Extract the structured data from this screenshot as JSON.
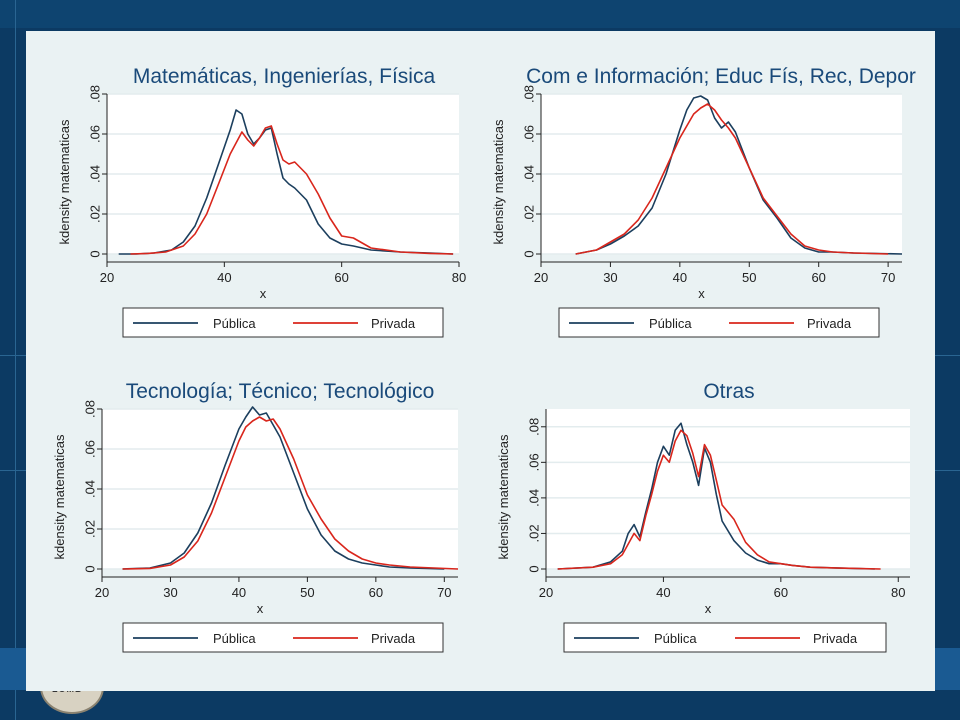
{
  "chart_data": [
    {
      "type": "line",
      "title": "Matemáticas, Ingenierías, Física",
      "xlabel": "x",
      "ylabel": "kdensity matematicas",
      "xlim": [
        20,
        80
      ],
      "ylim": [
        0,
        0.08
      ],
      "xticks": [
        "20",
        "40",
        "60",
        "80"
      ],
      "yticks": [
        "0",
        ".02",
        ".04",
        ".06",
        ".08"
      ],
      "legend_position": "bottom",
      "series": [
        {
          "name": "Pública",
          "color": "#1c3f5e",
          "x": [
            22,
            25,
            28,
            31,
            33,
            35,
            37,
            39,
            41,
            42,
            43,
            44,
            45,
            46,
            47,
            48,
            49,
            50,
            51,
            52,
            54,
            56,
            58,
            60,
            62,
            65,
            70,
            75,
            79
          ],
          "y": [
            0,
            0,
            0.0005,
            0.002,
            0.006,
            0.014,
            0.028,
            0.045,
            0.062,
            0.072,
            0.07,
            0.06,
            0.055,
            0.058,
            0.062,
            0.063,
            0.05,
            0.038,
            0.035,
            0.033,
            0.027,
            0.015,
            0.008,
            0.005,
            0.004,
            0.002,
            0.001,
            0.0005,
            0
          ]
        },
        {
          "name": "Privada",
          "color": "#d9261c",
          "x": [
            24,
            27,
            30,
            33,
            35,
            37,
            39,
            41,
            43,
            44,
            45,
            46,
            47,
            48,
            49,
            50,
            51,
            52,
            54,
            56,
            58,
            60,
            62,
            65,
            70,
            75,
            79
          ],
          "y": [
            0,
            0.0003,
            0.001,
            0.004,
            0.01,
            0.02,
            0.035,
            0.05,
            0.061,
            0.057,
            0.054,
            0.058,
            0.063,
            0.064,
            0.055,
            0.047,
            0.045,
            0.046,
            0.04,
            0.03,
            0.018,
            0.009,
            0.008,
            0.003,
            0.001,
            0.0003,
            0
          ]
        }
      ]
    },
    {
      "type": "line",
      "title": "Com e Información; Educ Fís, Rec, Depor",
      "xlabel": "x",
      "ylabel": "kdensity matematicas",
      "xlim": [
        20,
        72
      ],
      "ylim": [
        0,
        0.08
      ],
      "xticks": [
        "20",
        "30",
        "40",
        "50",
        "60",
        "70"
      ],
      "yticks": [
        "0",
        ".02",
        ".04",
        ".06",
        ".08"
      ],
      "legend_position": "bottom",
      "series": [
        {
          "name": "Pública",
          "color": "#1c3f5e",
          "x": [
            25,
            28,
            30,
            32,
            34,
            36,
            38,
            40,
            41,
            42,
            43,
            44,
            45,
            46,
            47,
            48,
            50,
            52,
            54,
            56,
            58,
            60,
            62,
            65,
            72
          ],
          "y": [
            0,
            0.002,
            0.005,
            0.009,
            0.014,
            0.023,
            0.04,
            0.062,
            0.072,
            0.078,
            0.079,
            0.077,
            0.068,
            0.063,
            0.066,
            0.061,
            0.043,
            0.027,
            0.018,
            0.008,
            0.003,
            0.001,
            0.001,
            0.0005,
            0
          ]
        },
        {
          "name": "Privada",
          "color": "#d9261c",
          "x": [
            25,
            28,
            30,
            32,
            34,
            36,
            38,
            40,
            42,
            43,
            44,
            45,
            46,
            47,
            48,
            50,
            52,
            54,
            56,
            58,
            60,
            62,
            65,
            70
          ],
          "y": [
            0,
            0.002,
            0.006,
            0.01,
            0.017,
            0.028,
            0.043,
            0.058,
            0.07,
            0.073,
            0.075,
            0.072,
            0.067,
            0.063,
            0.058,
            0.043,
            0.028,
            0.019,
            0.01,
            0.004,
            0.002,
            0.001,
            0.0005,
            0
          ]
        }
      ]
    },
    {
      "type": "line",
      "title": "Tecnología; Técnico; Tecnológico",
      "xlabel": "x",
      "ylabel": "kdensity matematicas",
      "xlim": [
        20,
        72
      ],
      "ylim": [
        0,
        0.08
      ],
      "xticks": [
        "20",
        "30",
        "40",
        "50",
        "60",
        "70"
      ],
      "yticks": [
        "0",
        ".02",
        ".04",
        ".06",
        ".08"
      ],
      "legend_position": "bottom",
      "series": [
        {
          "name": "Pública",
          "color": "#1c3f5e",
          "x": [
            23,
            27,
            30,
            32,
            34,
            36,
            38,
            40,
            41,
            42,
            43,
            44,
            45,
            46,
            48,
            50,
            52,
            54,
            56,
            58,
            60,
            62,
            65,
            70
          ],
          "y": [
            0,
            0.0005,
            0.003,
            0.008,
            0.018,
            0.033,
            0.052,
            0.07,
            0.076,
            0.081,
            0.077,
            0.078,
            0.072,
            0.066,
            0.048,
            0.03,
            0.017,
            0.009,
            0.005,
            0.003,
            0.002,
            0.001,
            0.0005,
            0
          ]
        },
        {
          "name": "Privada",
          "color": "#d9261c",
          "x": [
            23,
            27,
            30,
            32,
            34,
            36,
            38,
            40,
            41,
            42,
            43,
            44,
            45,
            46,
            48,
            50,
            52,
            54,
            56,
            58,
            60,
            62,
            65,
            72
          ],
          "y": [
            0,
            0.0003,
            0.002,
            0.006,
            0.014,
            0.028,
            0.046,
            0.064,
            0.071,
            0.074,
            0.076,
            0.074,
            0.075,
            0.07,
            0.055,
            0.037,
            0.025,
            0.015,
            0.009,
            0.005,
            0.003,
            0.002,
            0.001,
            0
          ]
        }
      ]
    },
    {
      "type": "line",
      "title": "Otras",
      "xlabel": "x",
      "ylabel": "kdensity matematicas",
      "xlim": [
        20,
        82
      ],
      "ylim": [
        0,
        0.09
      ],
      "xticks": [
        "20",
        "40",
        "60",
        "80"
      ],
      "yticks": [
        "0",
        ".02",
        ".04",
        ".06",
        ".08"
      ],
      "legend_position": "bottom",
      "series": [
        {
          "name": "Pública",
          "color": "#1c3f5e",
          "x": [
            22,
            28,
            31,
            33,
            34,
            35,
            36,
            37,
            38,
            39,
            40,
            41,
            42,
            43,
            44,
            45,
            46,
            47,
            48,
            49,
            50,
            52,
            54,
            56,
            58,
            60,
            62,
            65,
            70,
            76
          ],
          "y": [
            0,
            0.001,
            0.004,
            0.01,
            0.02,
            0.025,
            0.018,
            0.032,
            0.045,
            0.06,
            0.069,
            0.064,
            0.078,
            0.082,
            0.07,
            0.06,
            0.047,
            0.068,
            0.06,
            0.042,
            0.027,
            0.016,
            0.009,
            0.005,
            0.003,
            0.003,
            0.002,
            0.001,
            0.0005,
            0
          ]
        },
        {
          "name": "Privada",
          "color": "#d9261c",
          "x": [
            22,
            28,
            31,
            33,
            35,
            36,
            37,
            38,
            39,
            40,
            41,
            42,
            43,
            44,
            45,
            46,
            47,
            48,
            49,
            50,
            52,
            54,
            56,
            58,
            60,
            62,
            65,
            70,
            77
          ],
          "y": [
            0,
            0.001,
            0.003,
            0.008,
            0.02,
            0.016,
            0.03,
            0.042,
            0.055,
            0.064,
            0.06,
            0.072,
            0.078,
            0.075,
            0.065,
            0.052,
            0.07,
            0.064,
            0.05,
            0.036,
            0.028,
            0.015,
            0.008,
            0.004,
            0.003,
            0.002,
            0.001,
            0.0005,
            0
          ]
        }
      ]
    }
  ]
}
